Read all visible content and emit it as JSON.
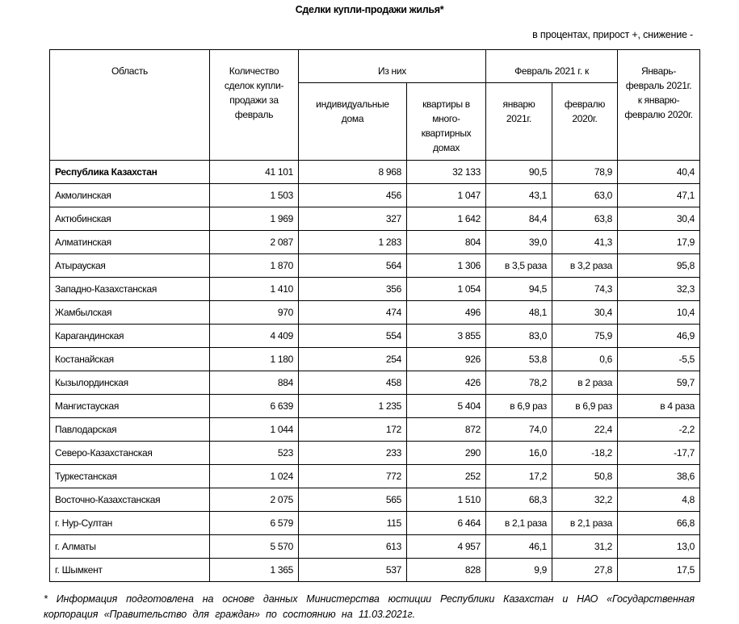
{
  "title": "Сделки купли-продажи жилья*",
  "units_note": "в процентах, прирост +, снижение -",
  "headers": {
    "region": "Область",
    "count": "Количество сделок купли-продажи за февраль",
    "of_which": "Из них",
    "individual": "индивидуальные дома",
    "apartments": "квартиры в много-квартирных домах",
    "feb2021_to": "Февраль 2021 г. к",
    "jan2021": "январю 2021г.",
    "feb2020": "февралю 2020г.",
    "janfeb": "Январь-февраль 2021г. к январю-февралю 2020г."
  },
  "rows": [
    {
      "region": "Республика Казахстан",
      "count": "41 101",
      "individual": "8 968",
      "apartments": "32 133",
      "jan2021": "90,5",
      "feb2020": "78,9",
      "janfeb": "40,4"
    },
    {
      "region": "Акмолинская",
      "count": "1 503",
      "individual": "456",
      "apartments": "1 047",
      "jan2021": "43,1",
      "feb2020": "63,0",
      "janfeb": "47,1"
    },
    {
      "region": "Актюбинская",
      "count": "1 969",
      "individual": "327",
      "apartments": "1 642",
      "jan2021": "84,4",
      "feb2020": "63,8",
      "janfeb": "30,4"
    },
    {
      "region": "Алматинская",
      "count": "2 087",
      "individual": "1 283",
      "apartments": "804",
      "jan2021": "39,0",
      "feb2020": "41,3",
      "janfeb": "17,9"
    },
    {
      "region": "Атырауская",
      "count": "1 870",
      "individual": "564",
      "apartments": "1 306",
      "jan2021": "в 3,5 раза",
      "feb2020": "в 3,2 раза",
      "janfeb": "95,8"
    },
    {
      "region": "Западно-Казахстанская",
      "count": "1 410",
      "individual": "356",
      "apartments": "1 054",
      "jan2021": "94,5",
      "feb2020": "74,3",
      "janfeb": "32,3"
    },
    {
      "region": "Жамбылская",
      "count": "970",
      "individual": "474",
      "apartments": "496",
      "jan2021": "48,1",
      "feb2020": "30,4",
      "janfeb": "10,4"
    },
    {
      "region": "Карагандинская",
      "count": "4 409",
      "individual": "554",
      "apartments": "3 855",
      "jan2021": "83,0",
      "feb2020": "75,9",
      "janfeb": "46,9"
    },
    {
      "region": "Костанайская",
      "count": "1 180",
      "individual": "254",
      "apartments": "926",
      "jan2021": "53,8",
      "feb2020": "0,6",
      "janfeb": "-5,5"
    },
    {
      "region": "Кызылординская",
      "count": "884",
      "individual": "458",
      "apartments": "426",
      "jan2021": "78,2",
      "feb2020": "в 2 раза",
      "janfeb": "59,7"
    },
    {
      "region": "Мангистауская",
      "count": "6 639",
      "individual": "1 235",
      "apartments": "5 404",
      "jan2021": "в 6,9 раз",
      "feb2020": "в 6,9 раз",
      "janfeb": "в 4 раза"
    },
    {
      "region": "Павлодарская",
      "count": "1 044",
      "individual": "172",
      "apartments": "872",
      "jan2021": "74,0",
      "feb2020": "22,4",
      "janfeb": "-2,2"
    },
    {
      "region": "Северо-Казахстанская",
      "count": "523",
      "individual": "233",
      "apartments": "290",
      "jan2021": "16,0",
      "feb2020": "-18,2",
      "janfeb": "-17,7"
    },
    {
      "region": "Туркестанская",
      "count": "1 024",
      "individual": "772",
      "apartments": "252",
      "jan2021": "17,2",
      "feb2020": "50,8",
      "janfeb": "38,6"
    },
    {
      "region": "Восточно-Казахстанская",
      "count": "2 075",
      "individual": "565",
      "apartments": "1 510",
      "jan2021": "68,3",
      "feb2020": "32,2",
      "janfeb": "4,8"
    },
    {
      "region": "г. Нур-Султан",
      "count": "6 579",
      "individual": "115",
      "apartments": "6 464",
      "jan2021": "в 2,1 раза",
      "feb2020": "в 2,1 раза",
      "janfeb": "66,8"
    },
    {
      "region": "г. Алматы",
      "count": "5 570",
      "individual": "613",
      "apartments": "4 957",
      "jan2021": "46,1",
      "feb2020": "31,2",
      "janfeb": "13,0"
    },
    {
      "region": "г. Шымкент",
      "count": "1 365",
      "individual": "537",
      "apartments": "828",
      "jan2021": "9,9",
      "feb2020": "27,8",
      "janfeb": "17,5"
    }
  ],
  "footnote": "*   Информация подготовлена на основе данных Министерства юстиции Республики Казахстан и НАО «Государственная корпорация «Правительство для граждан» по состоянию на 11.03.2021г."
}
